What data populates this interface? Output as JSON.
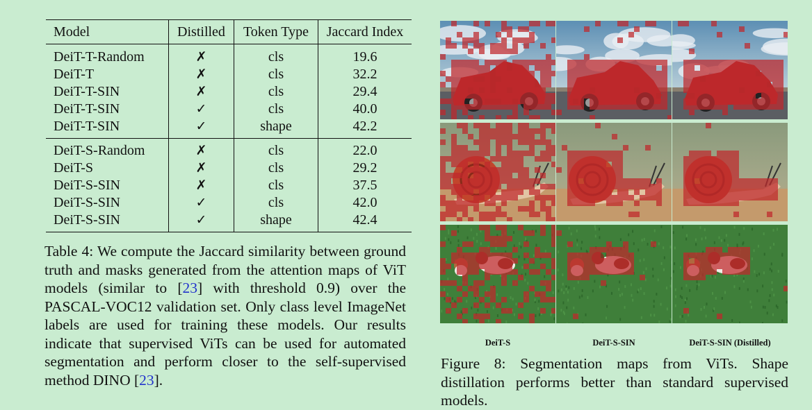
{
  "table": {
    "headers": [
      "Model",
      "Distilled",
      "Token Type",
      "Jaccard Index"
    ],
    "groups": [
      [
        {
          "model": "DeiT-T-Random",
          "distilled": "✗",
          "token": "cls",
          "jaccard": "19.6"
        },
        {
          "model": "DeiT-T",
          "distilled": "✗",
          "token": "cls",
          "jaccard": "32.2"
        },
        {
          "model": "DeiT-T-SIN",
          "distilled": "✗",
          "token": "cls",
          "jaccard": "29.4"
        },
        {
          "model": "DeiT-T-SIN",
          "distilled": "✓",
          "token": "cls",
          "jaccard": "40.0"
        },
        {
          "model": "DeiT-T-SIN",
          "distilled": "✓",
          "token": "shape",
          "jaccard": "42.2"
        }
      ],
      [
        {
          "model": "DeiT-S-Random",
          "distilled": "✗",
          "token": "cls",
          "jaccard": "22.0"
        },
        {
          "model": "DeiT-S",
          "distilled": "✗",
          "token": "cls",
          "jaccard": "29.2"
        },
        {
          "model": "DeiT-S-SIN",
          "distilled": "✗",
          "token": "cls",
          "jaccard": "37.5"
        },
        {
          "model": "DeiT-S-SIN",
          "distilled": "✓",
          "token": "cls",
          "jaccard": "42.0"
        },
        {
          "model": "DeiT-S-SIN",
          "distilled": "✓",
          "token": "shape",
          "jaccard": "42.4"
        }
      ]
    ]
  },
  "table_caption": {
    "before_ref1": "Table 4: We compute the Jaccard similarity between ground truth and masks generated from the attention maps of ViT models (similar to [",
    "ref1": "23",
    "after_ref1": "] with threshold 0.9) over the PASCAL-VOC12 validation set. Only class level ImageNet labels are used for training these models. Our results indicate that supervised ViTs can be used for automated segmentation and perform closer to the self-supervised method DINO [",
    "ref2": "23",
    "after_ref2": "]."
  },
  "figure": {
    "columns": [
      "DeiT-S",
      "DeiT-S-SIN",
      "DeiT-S-SIN (Distilled)"
    ],
    "rows": [
      "car",
      "snail",
      "dogs"
    ],
    "caption": "Figure 8: Segmentation maps from ViTs. Shape distillation performs better than standard supervised models."
  },
  "colors": {
    "background": "#c9ecd0",
    "mask_red": "#c0282c",
    "link_blue": "#2233cc"
  }
}
